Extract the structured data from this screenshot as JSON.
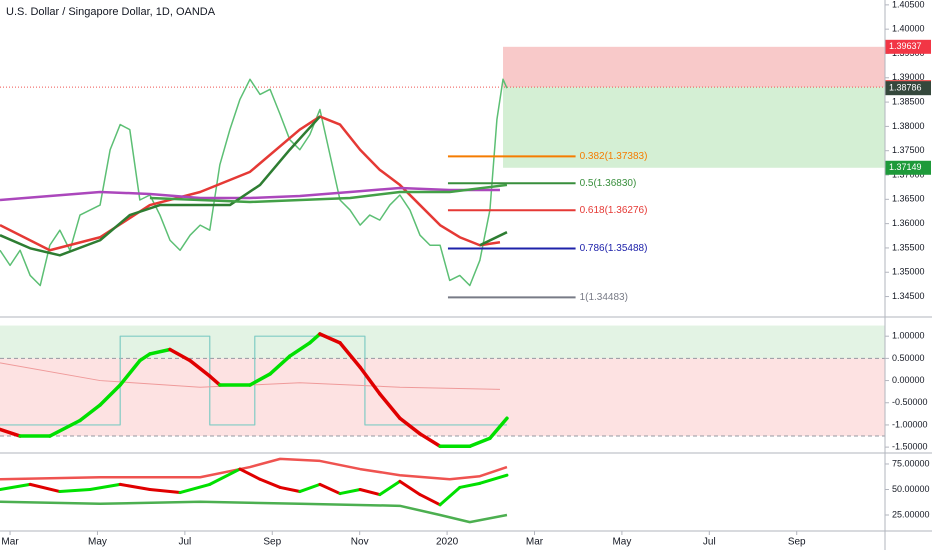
{
  "chart_data": [
    {
      "type": "line",
      "title": "U.S. Dollar / Singapore Dollar, 1D, OANDA",
      "xlim": [
        2.77,
        23.02
      ],
      "xticks": [
        {
          "value": 3,
          "label": "Mar"
        },
        {
          "value": 5,
          "label": "May"
        },
        {
          "value": 7,
          "label": "Jul"
        },
        {
          "value": 9,
          "label": "Sep"
        },
        {
          "value": 11,
          "label": "Nov"
        },
        {
          "value": 13,
          "label": "2020"
        },
        {
          "value": 15,
          "label": "Mar"
        },
        {
          "value": 17,
          "label": "May"
        },
        {
          "value": 19,
          "label": "Jul"
        },
        {
          "value": 21,
          "label": "Sep"
        }
      ],
      "ylim": [
        1.341,
        1.406
      ],
      "yticks": [
        {
          "value": 1.405,
          "label": "1.40500"
        },
        {
          "value": 1.4,
          "label": "1.40000"
        },
        {
          "value": 1.395,
          "label": "1.39500"
        },
        {
          "value": 1.39,
          "label": "1.39000"
        },
        {
          "value": 1.385,
          "label": "1.38500"
        },
        {
          "value": 1.38,
          "label": "1.38000"
        },
        {
          "value": 1.375,
          "label": "1.37500"
        },
        {
          "value": 1.37,
          "label": "1.37000"
        },
        {
          "value": 1.365,
          "label": "1.36500"
        },
        {
          "value": 1.36,
          "label": "1.36000"
        },
        {
          "value": 1.355,
          "label": "1.35500"
        },
        {
          "value": 1.35,
          "label": "1.35000"
        },
        {
          "value": 1.345,
          "label": "1.34500"
        }
      ],
      "series": [
        {
          "color": "#5cbf74",
          "width": 1.5,
          "x": [
            2.77,
            3.0,
            3.23,
            3.46,
            3.69,
            3.91,
            4.14,
            4.37,
            4.6,
            4.83,
            5.06,
            5.29,
            5.52,
            5.74,
            5.97,
            6.2,
            6.43,
            6.66,
            6.89,
            7.12,
            7.35,
            7.57,
            7.8,
            8.03,
            8.26,
            8.49,
            8.72,
            8.95,
            9.18,
            9.4,
            9.63,
            9.86,
            10.09,
            10.32,
            10.55,
            10.78,
            11.01,
            11.23,
            11.46,
            11.69,
            11.92,
            12.15,
            12.38,
            12.61,
            12.84,
            13.06,
            13.29,
            13.52,
            13.75,
            13.98,
            14.14,
            14.28,
            14.37
          ],
          "values": [
            1.35452,
            1.35141,
            1.35452,
            1.34934,
            1.34727,
            1.35555,
            1.35865,
            1.35452,
            1.36176,
            1.36279,
            1.36382,
            1.3752,
            1.38038,
            1.37934,
            1.36486,
            1.36589,
            1.36176,
            1.35658,
            1.35452,
            1.35762,
            1.35969,
            1.35865,
            1.3721,
            1.37934,
            1.38555,
            1.38969,
            1.38658,
            1.38762,
            1.38245,
            1.37727,
            1.3752,
            1.37831,
            1.38348,
            1.37417,
            1.36486,
            1.36279,
            1.35969,
            1.36176,
            1.36072,
            1.36382,
            1.36589,
            1.36279,
            1.35762,
            1.35555,
            1.35555,
            1.34831,
            1.34934,
            1.34727,
            1.35245,
            1.36279,
            1.38141,
            1.38969,
            1.38786
          ]
        },
        {
          "color": "#e53935",
          "width": 2.5,
          "x": [
            2.77,
            3.91,
            5.06,
            6.2,
            7.35,
            8.49,
            9.63,
            10.09,
            10.55,
            11.01,
            11.46,
            11.92,
            12.38,
            12.84,
            13.29,
            13.75,
            14.21
          ],
          "values": [
            1.35969,
            1.35452,
            1.3572,
            1.36382,
            1.36651,
            1.37065,
            1.37934,
            1.38203,
            1.38038,
            1.3752,
            1.37107,
            1.36796,
            1.36382,
            1.35969,
            1.3572,
            1.35555,
            1.35617
          ]
        },
        {
          "color": "#ab47bc",
          "width": 2.5,
          "x": [
            2.77,
            3.91,
            5.06,
            6.2,
            7.35,
            8.49,
            9.63,
            10.78,
            11.92,
            13.06,
            14.21
          ],
          "values": [
            1.36486,
            1.36569,
            1.36651,
            1.3661,
            1.36527,
            1.36527,
            1.36569,
            1.36651,
            1.36734,
            1.36693,
            1.36693
          ]
        },
        {
          "color": "#2e7d32",
          "width": 2.5,
          "x": [
            2.77,
            3.46,
            4.14,
            5.06,
            5.74,
            6.43,
            7.35,
            8.03,
            8.72,
            9.4,
            10.09,
            12.0,
            13.75,
            14.37
          ],
          "values": [
            1.35762,
            1.35493,
            1.35348,
            1.35658,
            1.36176,
            1.36382,
            1.36382,
            1.36382,
            1.36796,
            1.3752,
            1.38203,
            null,
            1.35555,
            1.35824
          ]
        },
        {
          "color": "#43a047",
          "width": 2.5,
          "x": [
            6.2,
            8.49,
            10.78,
            11.92,
            13.06,
            14.37
          ],
          "values": [
            1.36527,
            1.36445,
            1.36527,
            1.36651,
            1.36651,
            1.36796
          ]
        }
      ],
      "fib_x": [
        13.02,
        15.94
      ],
      "fib_levels": [
        {
          "value": 1.37383,
          "label": "0.382(1.37383)",
          "color": "#f57c00"
        },
        {
          "value": 1.3683,
          "label": "0.5(1.36830)",
          "color": "#388e3c"
        },
        {
          "value": 1.36276,
          "label": "0.618(1.36276)",
          "color": "#e53935"
        },
        {
          "value": 1.35488,
          "label": "0.786(1.35488)",
          "color": "#1e22aa"
        },
        {
          "value": 1.34483,
          "label": "1(1.34483)",
          "color": "#787b86"
        }
      ],
      "position": {
        "x": 14.28,
        "stop": 1.39637,
        "entry": 1.38809,
        "target": 1.37149
      },
      "price_tags": [
        {
          "value": 1.39637,
          "color": "#f23645"
        },
        {
          "value": 1.38809,
          "color": "#ef5350"
        },
        {
          "value": 1.38786,
          "color": "#35483c"
        },
        {
          "value": 1.37149,
          "color": "#1e9a3a"
        }
      ]
    },
    {
      "type": "oscillator",
      "ylim": [
        -1.61,
        1.41
      ],
      "yticks": [
        {
          "value": 1,
          "label": "1.00000"
        },
        {
          "value": 0.5,
          "label": "0.50000"
        },
        {
          "value": 0,
          "label": "0.00000"
        },
        {
          "value": -0.5,
          "label": "-0.50000"
        },
        {
          "value": -1,
          "label": "-1.00000"
        },
        {
          "value": -1.5,
          "label": "-1.50000"
        }
      ],
      "bands": [
        {
          "from": 0.5,
          "to": 1.24,
          "color": "#e3f3e4"
        },
        {
          "from": -1.25,
          "to": 0.5,
          "color": "#fde2e2"
        }
      ],
      "dashed_levels": [
        0.5,
        -1.25
      ],
      "series": [
        {
          "color": "#80cbc4",
          "width": 1.2,
          "x": [
            2.77,
            5.52,
            5.52,
            7.57,
            7.57,
            8.6,
            8.6,
            11.12,
            11.12,
            14.37
          ],
          "values": [
            -1,
            -1,
            1,
            1,
            -1,
            -1,
            1,
            1,
            -1,
            -1
          ]
        },
        {
          "color": "#ef9a9a",
          "width": 1,
          "x": [
            2.77,
            5.06,
            7.35,
            9.63,
            11.92,
            14.21
          ],
          "values": [
            0.4,
            0,
            -0.15,
            -0.05,
            -0.15,
            -0.2
          ]
        },
        {
          "up_color": "#00e000",
          "down_color": "#e00000",
          "width": 3.5,
          "x": [
            2.77,
            3.23,
            3.91,
            4.6,
            5.06,
            5.52,
            5.97,
            6.2,
            6.66,
            7.12,
            7.57,
            7.8,
            8.49,
            8.95,
            9.4,
            9.86,
            10.09,
            10.55,
            11.01,
            11.46,
            11.92,
            12.38,
            12.84,
            13.52,
            13.98,
            14.37
          ],
          "values": [
            -1.1,
            -1.25,
            -1.25,
            -0.9,
            -0.55,
            -0.1,
            0.45,
            0.6,
            0.7,
            0.45,
            0.1,
            -0.1,
            -0.1,
            0.15,
            0.55,
            0.85,
            1.05,
            0.85,
            0.3,
            -0.3,
            -0.85,
            -1.2,
            -1.48,
            -1.48,
            -1.3,
            -0.85
          ]
        }
      ]
    },
    {
      "type": "oscillator",
      "ylim": [
        10.3,
        83.8
      ],
      "yticks": [
        {
          "value": 75,
          "label": "75.00000"
        },
        {
          "value": 50,
          "label": "50.00000"
        },
        {
          "value": 25,
          "label": "25.00000"
        }
      ],
      "series": [
        {
          "color": "#ef5350",
          "width": 2.5,
          "x": [
            2.77,
            5.06,
            7.35,
            8.49,
            9.18,
            10.09,
            11.01,
            11.92,
            13.06,
            13.75,
            14.37
          ],
          "values": [
            60,
            62,
            62,
            72,
            80,
            78,
            70,
            64,
            60,
            63,
            72
          ]
        },
        {
          "color": "#4caf50",
          "width": 2.5,
          "x": [
            2.77,
            5.06,
            7.35,
            9.63,
            11.92,
            12.84,
            13.52,
            14.37
          ],
          "values": [
            38,
            36,
            38,
            36,
            34,
            25,
            18,
            25
          ]
        },
        {
          "up_color": "#00e000",
          "down_color": "#e00000",
          "width": 3,
          "x": [
            2.77,
            3.46,
            4.14,
            4.83,
            5.52,
            6.2,
            6.89,
            7.57,
            8.26,
            8.72,
            9.18,
            9.63,
            10.09,
            10.55,
            11.01,
            11.46,
            11.92,
            12.38,
            12.84,
            13.29,
            13.75,
            14.37
          ],
          "values": [
            50,
            55,
            48,
            50,
            55,
            50,
            47,
            55,
            70,
            60,
            52,
            48,
            55,
            46,
            50,
            45,
            58,
            45,
            35,
            52,
            56,
            64
          ]
        }
      ]
    }
  ]
}
